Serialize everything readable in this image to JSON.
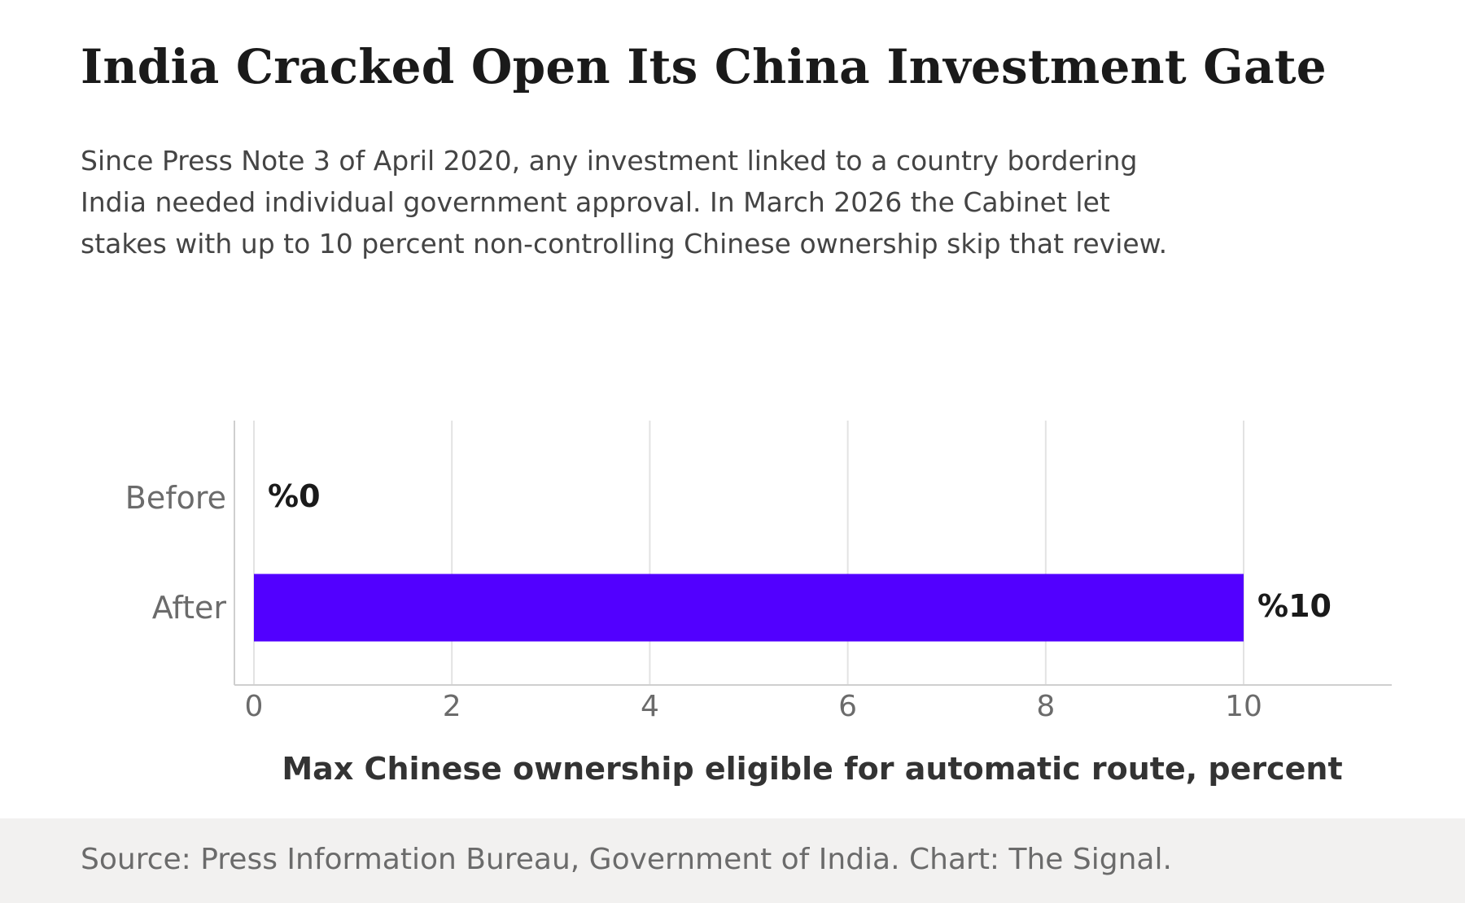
{
  "header": {
    "title": "India Cracked Open Its China Investment Gate",
    "subtitle": "Since Press Note 3 of April 2020, any investment linked to a country bordering India needed individual government approval. In March 2026 the Cabinet let stakes with up to 10 percent non-controlling Chinese ownership skip that review."
  },
  "chart_data": {
    "type": "bar",
    "orientation": "horizontal",
    "categories": [
      "Before",
      "After"
    ],
    "values": [
      0,
      10
    ],
    "data_labels": [
      "%0",
      "%10"
    ],
    "xlabel": "Max Chinese ownership eligible for automatic route, percent",
    "ylabel": "",
    "xlim": [
      0,
      11.5
    ],
    "x_ticks": [
      0,
      2,
      4,
      6,
      8,
      10
    ],
    "grid": "vertical",
    "bar_color": "#5200ff"
  },
  "footer": {
    "source": "Source: Press Information Bureau, Government of India. Chart: The Signal."
  }
}
